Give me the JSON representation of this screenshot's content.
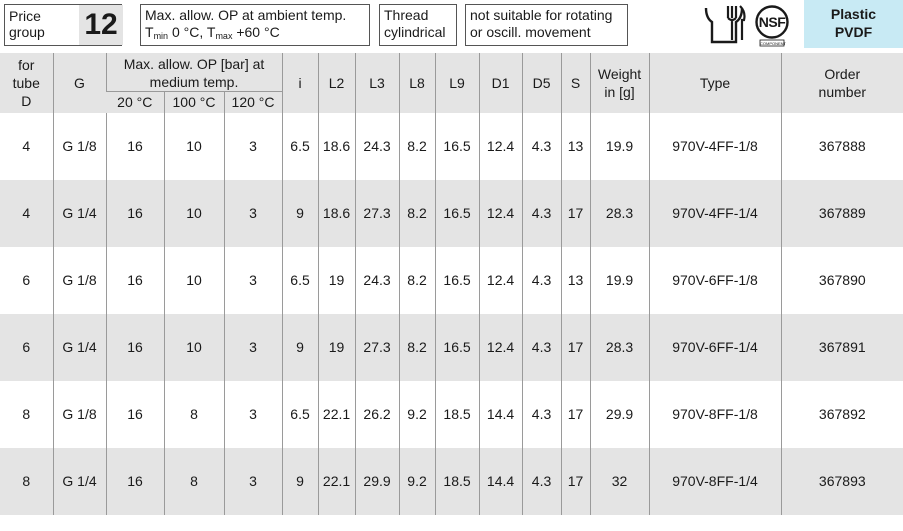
{
  "header": {
    "price_label_line1": "Price",
    "price_label_line2": "group",
    "price_group": "12",
    "op_line1": "Max. allow. OP at ambient temp.",
    "op_tmin": "min",
    "op_mid": " 0 °C, T",
    "op_tmax": "max",
    "op_end": " +60 °C",
    "op_T": "T",
    "thread_line1": "Thread",
    "thread_line2": "cylindrical",
    "rotating_line1": "not suitable for rotating",
    "rotating_line2": "or oscill. movement",
    "food_icon": "food-safe-icon",
    "nsf_text": "NSF",
    "nsf_sub": "COMPONENT",
    "material_line1": "Plastic",
    "material_line2": "PVDF",
    "material_color": "#c8eaf4"
  },
  "table": {
    "col_tube_1": "for",
    "col_tube_2": "tube",
    "col_tube_3": "D",
    "col_g": "G",
    "col_op_1": "Max. allow. OP [bar] at",
    "col_op_2": "medium temp.",
    "col_t20": "20 °C",
    "col_t100": "100 °C",
    "col_t120": "120 °C",
    "col_i": "i",
    "col_l2": "L2",
    "col_l3": "L3",
    "col_l8": "L8",
    "col_l9": "L9",
    "col_d1": "D1",
    "col_d5": "D5",
    "col_s": "S",
    "col_weight_1": "Weight",
    "col_weight_2": "in [g]",
    "col_type": "Type",
    "col_order_1": "Order",
    "col_order_2": "number",
    "rows": [
      [
        "4",
        "G 1/8",
        "16",
        "10",
        "3",
        "6.5",
        "18.6",
        "24.3",
        "8.2",
        "16.5",
        "12.4",
        "4.3",
        "13",
        "19.9",
        "970V-4FF-1/8",
        "367888"
      ],
      [
        "4",
        "G 1/4",
        "16",
        "10",
        "3",
        "9",
        "18.6",
        "27.3",
        "8.2",
        "16.5",
        "12.4",
        "4.3",
        "17",
        "28.3",
        "970V-4FF-1/4",
        "367889"
      ],
      [
        "6",
        "G 1/8",
        "16",
        "10",
        "3",
        "6.5",
        "19",
        "24.3",
        "8.2",
        "16.5",
        "12.4",
        "4.3",
        "13",
        "19.9",
        "970V-6FF-1/8",
        "367890"
      ],
      [
        "6",
        "G 1/4",
        "16",
        "10",
        "3",
        "9",
        "19",
        "27.3",
        "8.2",
        "16.5",
        "12.4",
        "4.3",
        "17",
        "28.3",
        "970V-6FF-1/4",
        "367891"
      ],
      [
        "8",
        "G 1/8",
        "16",
        "8",
        "3",
        "6.5",
        "22.1",
        "26.2",
        "9.2",
        "18.5",
        "14.4",
        "4.3",
        "17",
        "29.9",
        "970V-8FF-1/8",
        "367892"
      ],
      [
        "8",
        "G 1/4",
        "16",
        "8",
        "3",
        "9",
        "22.1",
        "29.9",
        "9.2",
        "18.5",
        "14.4",
        "4.3",
        "17",
        "32",
        "970V-8FF-1/4",
        "367893"
      ]
    ]
  }
}
